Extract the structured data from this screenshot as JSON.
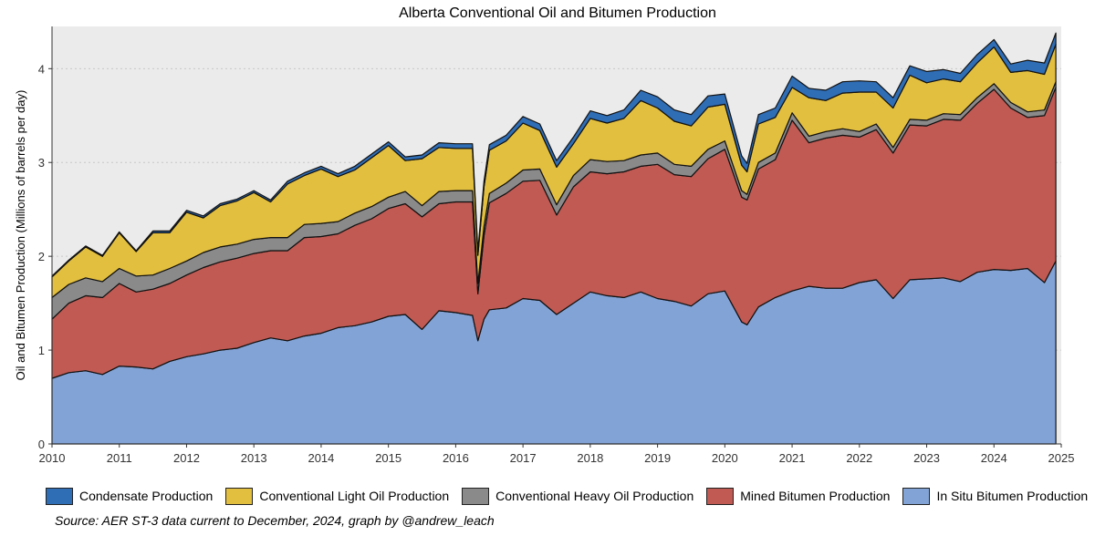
{
  "chart_data": {
    "type": "area",
    "stacked": true,
    "title": "Alberta Conventional Oil and Bitumen Production",
    "ylabel": "Oil and Bitumen Production (Millions of barrels per day)",
    "xlabel": "",
    "xlim": [
      2010.0,
      2025.0
    ],
    "ylim": [
      0,
      4.45
    ],
    "xticks": [
      "2010",
      "2011",
      "2012",
      "2013",
      "2014",
      "2015",
      "2016",
      "2017",
      "2018",
      "2019",
      "2020",
      "2021",
      "2022",
      "2023",
      "2024",
      "2025"
    ],
    "yticks": [
      "0",
      "1",
      "2",
      "3",
      "4"
    ],
    "grid": true,
    "legend_position": "bottom",
    "x": [
      2010.0,
      2010.25,
      2010.5,
      2010.75,
      2011.0,
      2011.25,
      2011.5,
      2011.75,
      2012.0,
      2012.25,
      2012.5,
      2012.75,
      2013.0,
      2013.25,
      2013.5,
      2013.75,
      2014.0,
      2014.25,
      2014.5,
      2014.75,
      2015.0,
      2015.25,
      2015.5,
      2015.75,
      2016.0,
      2016.25,
      2016.33,
      2016.42,
      2016.5,
      2016.75,
      2017.0,
      2017.25,
      2017.5,
      2017.75,
      2018.0,
      2018.25,
      2018.5,
      2018.75,
      2019.0,
      2019.25,
      2019.5,
      2019.75,
      2020.0,
      2020.25,
      2020.33,
      2020.5,
      2020.75,
      2021.0,
      2021.25,
      2021.5,
      2021.75,
      2022.0,
      2022.25,
      2022.5,
      2022.75,
      2023.0,
      2023.25,
      2023.5,
      2023.75,
      2024.0,
      2024.25,
      2024.5,
      2024.75,
      2024.92
    ],
    "series": [
      {
        "name": "In Situ Bitumen Production",
        "color": "#82a3d6",
        "values": [
          0.7,
          0.76,
          0.78,
          0.74,
          0.83,
          0.82,
          0.8,
          0.88,
          0.93,
          0.96,
          1.0,
          1.02,
          1.08,
          1.13,
          1.1,
          1.15,
          1.18,
          1.24,
          1.26,
          1.3,
          1.36,
          1.38,
          1.22,
          1.42,
          1.4,
          1.37,
          1.1,
          1.33,
          1.43,
          1.45,
          1.55,
          1.53,
          1.38,
          1.5,
          1.62,
          1.58,
          1.56,
          1.62,
          1.55,
          1.52,
          1.47,
          1.6,
          1.63,
          1.3,
          1.27,
          1.46,
          1.56,
          1.63,
          1.68,
          1.66,
          1.66,
          1.72,
          1.75,
          1.55,
          1.75,
          1.76,
          1.77,
          1.73,
          1.83,
          1.86,
          1.85,
          1.87,
          1.72,
          1.95
        ]
      },
      {
        "name": "Mined Bitumen Production",
        "color": "#c05a53",
        "values": [
          0.63,
          0.74,
          0.8,
          0.82,
          0.88,
          0.8,
          0.85,
          0.83,
          0.87,
          0.92,
          0.94,
          0.96,
          0.95,
          0.93,
          0.96,
          1.05,
          1.03,
          1.0,
          1.07,
          1.1,
          1.15,
          1.18,
          1.2,
          1.14,
          1.18,
          1.21,
          0.5,
          0.89,
          1.14,
          1.22,
          1.25,
          1.28,
          1.06,
          1.24,
          1.28,
          1.3,
          1.34,
          1.34,
          1.43,
          1.35,
          1.38,
          1.44,
          1.51,
          1.33,
          1.33,
          1.47,
          1.47,
          1.82,
          1.53,
          1.6,
          1.63,
          1.55,
          1.6,
          1.55,
          1.65,
          1.63,
          1.69,
          1.72,
          1.8,
          1.92,
          1.73,
          1.61,
          1.78,
          1.85
        ]
      },
      {
        "name": "Conventional Heavy Oil Production",
        "color": "#8a8a8a",
        "values": [
          0.23,
          0.2,
          0.19,
          0.17,
          0.16,
          0.17,
          0.15,
          0.16,
          0.15,
          0.16,
          0.16,
          0.15,
          0.15,
          0.14,
          0.14,
          0.14,
          0.14,
          0.13,
          0.13,
          0.13,
          0.12,
          0.13,
          0.12,
          0.13,
          0.12,
          0.12,
          0.11,
          0.1,
          0.1,
          0.11,
          0.12,
          0.12,
          0.11,
          0.12,
          0.13,
          0.13,
          0.12,
          0.12,
          0.12,
          0.11,
          0.11,
          0.1,
          0.09,
          0.07,
          0.06,
          0.07,
          0.07,
          0.08,
          0.07,
          0.07,
          0.07,
          0.06,
          0.06,
          0.06,
          0.06,
          0.06,
          0.06,
          0.06,
          0.06,
          0.06,
          0.06,
          0.06,
          0.06,
          0.06
        ]
      },
      {
        "name": "Conventional Light Oil Production",
        "color": "#e3bf3f",
        "values": [
          0.22,
          0.25,
          0.33,
          0.27,
          0.38,
          0.26,
          0.45,
          0.38,
          0.52,
          0.37,
          0.44,
          0.46,
          0.5,
          0.38,
          0.57,
          0.52,
          0.58,
          0.48,
          0.46,
          0.52,
          0.55,
          0.33,
          0.5,
          0.47,
          0.45,
          0.45,
          0.3,
          0.42,
          0.46,
          0.45,
          0.5,
          0.41,
          0.4,
          0.34,
          0.44,
          0.41,
          0.45,
          0.58,
          0.48,
          0.46,
          0.43,
          0.45,
          0.39,
          0.27,
          0.24,
          0.41,
          0.38,
          0.27,
          0.41,
          0.33,
          0.38,
          0.42,
          0.34,
          0.42,
          0.47,
          0.4,
          0.37,
          0.35,
          0.37,
          0.39,
          0.32,
          0.44,
          0.38,
          0.4
        ]
      },
      {
        "name": "Condensate Production",
        "color": "#2f6db5",
        "values": [
          0.01,
          0.01,
          0.01,
          0.01,
          0.01,
          0.01,
          0.02,
          0.02,
          0.02,
          0.02,
          0.02,
          0.02,
          0.02,
          0.02,
          0.03,
          0.03,
          0.03,
          0.03,
          0.04,
          0.04,
          0.04,
          0.04,
          0.04,
          0.05,
          0.05,
          0.05,
          0.05,
          0.06,
          0.06,
          0.06,
          0.07,
          0.07,
          0.07,
          0.07,
          0.08,
          0.08,
          0.09,
          0.11,
          0.12,
          0.12,
          0.12,
          0.12,
          0.11,
          0.1,
          0.09,
          0.1,
          0.1,
          0.12,
          0.1,
          0.11,
          0.12,
          0.12,
          0.11,
          0.11,
          0.1,
          0.12,
          0.1,
          0.09,
          0.09,
          0.08,
          0.09,
          0.11,
          0.12,
          0.12
        ]
      }
    ],
    "caption": "Source: AER ST-3 data current to December, 2024, graph by @andrew_leach"
  },
  "legend": {
    "items": [
      {
        "label": "Condensate Production",
        "color": "#2f6db5"
      },
      {
        "label": "Conventional Light Oil Production",
        "color": "#e3bf3f"
      },
      {
        "label": "Conventional Heavy Oil Production",
        "color": "#8a8a8a"
      },
      {
        "label": "Mined Bitumen Production",
        "color": "#c05a53"
      },
      {
        "label": "In Situ Bitumen Production",
        "color": "#82a3d6"
      }
    ]
  },
  "colors": {
    "panel_background": "#ebebeb",
    "outline": "#111111",
    "grid": "#c8c8c8"
  }
}
